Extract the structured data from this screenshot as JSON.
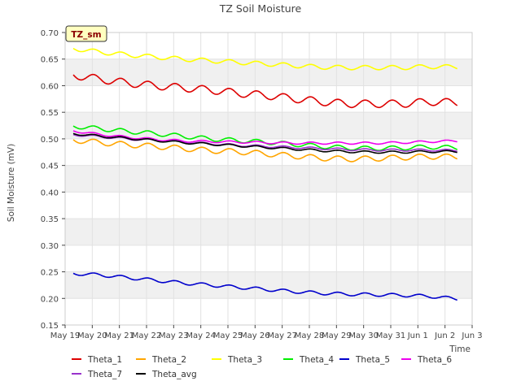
{
  "chart_data": {
    "type": "line",
    "title": "TZ Soil Moisture",
    "xlabel": "Time",
    "ylabel": "Soil Moisture (mV)",
    "badge": "TZ_sm",
    "ylim": [
      0.15,
      0.7
    ],
    "yticks": [
      0.15,
      0.2,
      0.25,
      0.3,
      0.35,
      0.4,
      0.45,
      0.5,
      0.55,
      0.6,
      0.65,
      0.7
    ],
    "ytick_labels": [
      "0.15",
      "0.20",
      "0.25",
      "0.30",
      "0.35",
      "0.40",
      "0.45",
      "0.50",
      "0.55",
      "0.60",
      "0.65",
      "0.70"
    ],
    "xlim": [
      0,
      15
    ],
    "xticks": [
      0,
      1,
      2,
      3,
      4,
      5,
      6,
      7,
      8,
      9,
      10,
      11,
      12,
      13,
      14,
      15
    ],
    "xtick_labels": [
      "May 19",
      "May 20",
      "May 21",
      "May 22",
      "May 23",
      "May 24",
      "May 25",
      "May 26",
      "May 27",
      "May 28",
      "May 29",
      "May 30",
      "May 31",
      "Jun 1",
      "Jun 2",
      "Jun 3"
    ],
    "x_data_range": [
      0.3,
      14.45
    ],
    "grid": true,
    "legend_position": "bottom",
    "series": [
      {
        "name": "Theta_1",
        "color": "#dd0000",
        "start": 0.62,
        "end": 0.568,
        "amp": 0.007,
        "trend": [
          0.62,
          0.612,
          0.605,
          0.6,
          0.596,
          0.592,
          0.586,
          0.582,
          0.576,
          0.57,
          0.566,
          0.566,
          0.566,
          0.57,
          0.568
        ]
      },
      {
        "name": "Theta_2",
        "color": "#ffa500",
        "start": 0.498,
        "end": 0.466,
        "amp": 0.005,
        "trend": [
          0.498,
          0.493,
          0.489,
          0.486,
          0.482,
          0.478,
          0.476,
          0.472,
          0.468,
          0.464,
          0.462,
          0.463,
          0.465,
          0.467,
          0.466
        ]
      },
      {
        "name": "Theta_3",
        "color": "#ffff00",
        "start": 0.67,
        "end": 0.635,
        "amp": 0.004,
        "trend": [
          0.67,
          0.663,
          0.658,
          0.654,
          0.65,
          0.647,
          0.644,
          0.641,
          0.638,
          0.635,
          0.634,
          0.634,
          0.634,
          0.636,
          0.635
        ]
      },
      {
        "name": "Theta_4",
        "color": "#00ee00",
        "start": 0.524,
        "end": 0.483,
        "amp": 0.004,
        "trend": [
          0.524,
          0.519,
          0.514,
          0.51,
          0.505,
          0.5,
          0.497,
          0.494,
          0.49,
          0.486,
          0.483,
          0.482,
          0.483,
          0.485,
          0.483
        ]
      },
      {
        "name": "Theta_5",
        "color": "#0000cc",
        "start": 0.247,
        "end": 0.199,
        "amp": 0.003,
        "trend": [
          0.247,
          0.244,
          0.239,
          0.234,
          0.229,
          0.225,
          0.221,
          0.217,
          0.213,
          0.21,
          0.208,
          0.207,
          0.206,
          0.204,
          0.199
        ]
      },
      {
        "name": "Theta_6",
        "color": "#ee00ee",
        "start": 0.515,
        "end": 0.496,
        "amp": 0.002,
        "trend": [
          0.515,
          0.508,
          0.503,
          0.499,
          0.496,
          0.495,
          0.494,
          0.493,
          0.492,
          0.492,
          0.492,
          0.492,
          0.493,
          0.495,
          0.496
        ]
      },
      {
        "name": "Theta_7",
        "color": "#9932cc",
        "start": 0.508,
        "end": 0.478,
        "amp": 0.002,
        "trend": [
          0.508,
          0.504,
          0.5,
          0.497,
          0.494,
          0.491,
          0.488,
          0.486,
          0.484,
          0.482,
          0.48,
          0.479,
          0.479,
          0.479,
          0.478
        ]
      },
      {
        "name": "Theta_avg",
        "color": "#000000",
        "start": 0.51,
        "end": 0.476,
        "amp": 0.002,
        "trend": [
          0.51,
          0.505,
          0.501,
          0.497,
          0.493,
          0.49,
          0.487,
          0.484,
          0.481,
          0.478,
          0.476,
          0.475,
          0.475,
          0.476,
          0.476
        ]
      }
    ]
  }
}
